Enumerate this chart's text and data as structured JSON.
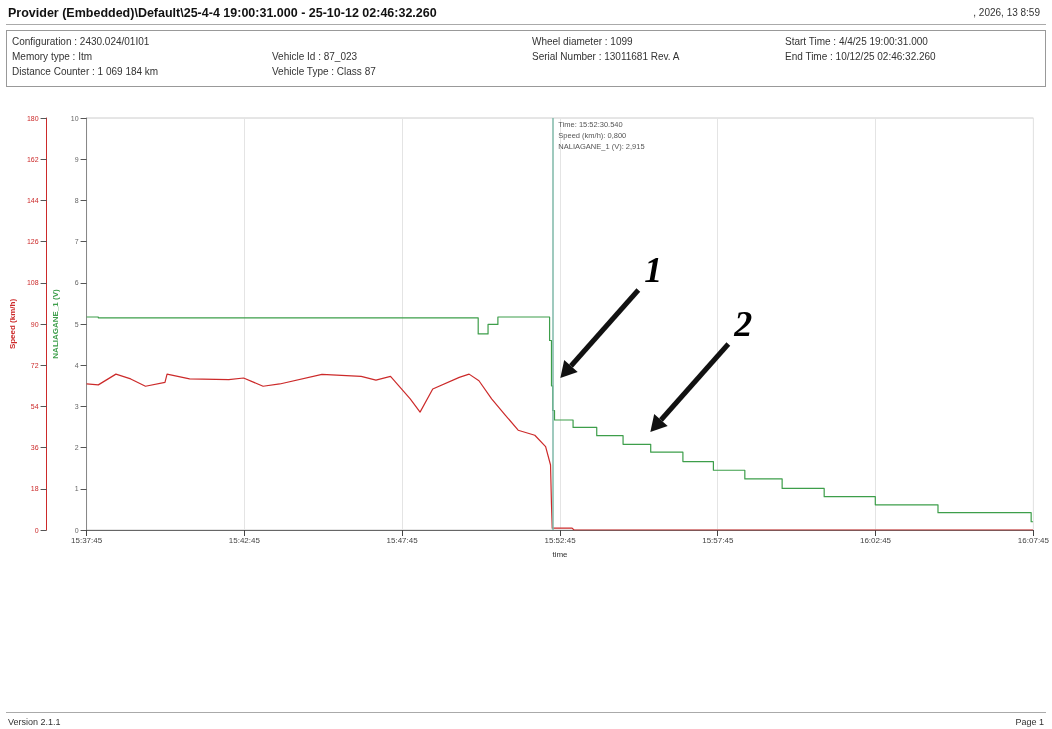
{
  "chart_data": {
    "type": "line",
    "title": "Provider (Embedded)\\Default\\25-4-4 19:00:31.000 - 25-10-12 02:46:32.260",
    "xlabel": "time",
    "ylabel": "NALIAGANE_1 (V)",
    "y2label": "Speed (km/h)",
    "annotations": [
      ", 2026, 13 8:59",
      "Configuration  :  2430.024/01I01",
      "Memory type  :  Itm",
      "Distance Counter  :  1 069 184 km",
      "Vehicle Id  :  87_023",
      "Vehicle Type  :  Class 87",
      "Wheel diameter  :  1099",
      "Serial Number  :  13011681 Rev. A",
      "Start Time  :  4/4/25 19:00:31.000",
      "End Time  :  10/12/25 02:46:32.260",
      "Version 2.1.1",
      "Page 1",
      "1",
      "2",
      "Time: 15:52:30.540",
      "Speed (km/h): 0,800",
      "NALIAGANE_1 (V): 2,915"
    ],
    "xlim": [
      15.6292,
      16.1292
    ],
    "xticks": [
      {
        "value": 15.6292,
        "label": "15:37:45"
      },
      {
        "value": 15.7125,
        "label": "15:42:45"
      },
      {
        "value": 15.7958,
        "label": "15:47:45"
      },
      {
        "value": 15.8792,
        "label": "15:52:45"
      },
      {
        "value": 15.9625,
        "label": "15:57:45"
      },
      {
        "value": 16.0458,
        "label": "16:02:45"
      },
      {
        "value": 16.1292,
        "label": "16:07:45"
      }
    ],
    "ylim": [
      0,
      10
    ],
    "yticks": [
      0,
      1,
      2,
      3,
      4,
      5,
      6,
      7,
      8,
      9,
      10
    ],
    "y2lim": [
      0,
      180
    ],
    "y2ticks": [
      0,
      18,
      36,
      54,
      72,
      90,
      108,
      126,
      144,
      162,
      180
    ],
    "grid": "x",
    "marker": "none",
    "ref_lines": [
      {
        "axis": "x",
        "value": 15.87515,
        "color": "#7fb8a8"
      }
    ],
    "series": [
      {
        "axis": "y2",
        "color": "#cc2a2a",
        "x": [
          15.6292,
          15.6354,
          15.6447,
          15.6525,
          15.6603,
          15.6706,
          15.6717,
          15.6836,
          15.7043,
          15.7121,
          15.7224,
          15.7312,
          15.7535,
          15.7742,
          15.782,
          15.7897,
          15.8001,
          15.8053,
          15.812,
          15.826,
          15.8312,
          15.8364,
          15.8431,
          15.8504,
          15.8571,
          15.8659,
          15.8716,
          15.8742,
          15.8747,
          15.8751,
          15.8758,
          15.8856,
          15.8866,
          16.129
        ],
        "values": [
          63.8,
          63.4,
          68.1,
          66,
          62.8,
          64.5,
          68.1,
          66,
          65.7,
          66.4,
          62.8,
          63.8,
          68,
          67.1,
          65.5,
          67.1,
          57.3,
          51.5,
          61.6,
          66.7,
          68.1,
          65.2,
          57.3,
          50.1,
          43.6,
          41.4,
          36.4,
          28.4,
          11.1,
          0.8,
          0.8,
          0.8,
          0,
          0
        ]
      },
      {
        "type": "step",
        "axis": "y",
        "color": "#3d9e4a",
        "x": [
          15.6292,
          15.6354,
          15.836,
          15.8412,
          15.8464,
          15.8737,
          15.8747,
          15.8753,
          15.8763,
          15.8861,
          15.8986,
          15.9125,
          15.9271,
          15.9441,
          15.9602,
          15.9768,
          15.9965,
          16.0187,
          16.0457,
          16.0788,
          16.128,
          16.129
        ],
        "values": [
          5.17,
          5.15,
          4.76,
          4.99,
          5.17,
          4.6,
          3.5,
          2.9,
          2.67,
          2.49,
          2.29,
          2.08,
          1.89,
          1.66,
          1.45,
          1.24,
          1.01,
          0.81,
          0.61,
          0.42,
          0.2,
          0.2
        ]
      }
    ]
  }
}
